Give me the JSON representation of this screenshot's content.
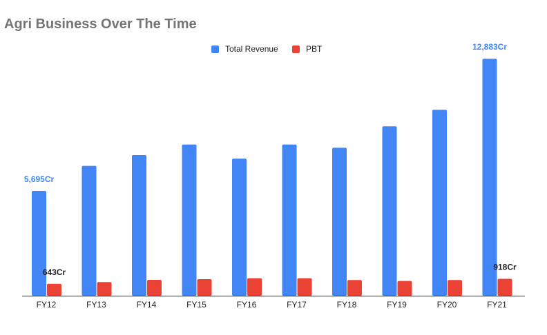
{
  "chart_data": {
    "type": "bar",
    "title": "Agri Business Over The Time",
    "categories": [
      "FY12",
      "FY13",
      "FY14",
      "FY15",
      "FY16",
      "FY17",
      "FY18",
      "FY19",
      "FY20",
      "FY21"
    ],
    "series": [
      {
        "name": "Total Revenue",
        "color": "#4285f4",
        "values": [
          5695,
          7058,
          7645,
          8219,
          7454,
          8219,
          8041,
          9211,
          10108,
          12883
        ]
      },
      {
        "name": "PBT",
        "color": "#ea4335",
        "values": [
          643,
          740,
          860,
          900,
          950,
          950,
          850,
          800,
          850,
          918
        ]
      }
    ],
    "data_labels": [
      {
        "series": 0,
        "index": 0,
        "text": "5,695Cr"
      },
      {
        "series": 0,
        "index": 9,
        "text": "12,883Cr"
      },
      {
        "series": 1,
        "index": 0,
        "text": "643Cr"
      },
      {
        "series": 1,
        "index": 9,
        "text": "918Cr"
      }
    ],
    "ylim": [
      0,
      14200
    ],
    "xlabel": "",
    "ylabel": "",
    "grid": false,
    "y_axis_visible": false,
    "legend_position": "top-center"
  }
}
